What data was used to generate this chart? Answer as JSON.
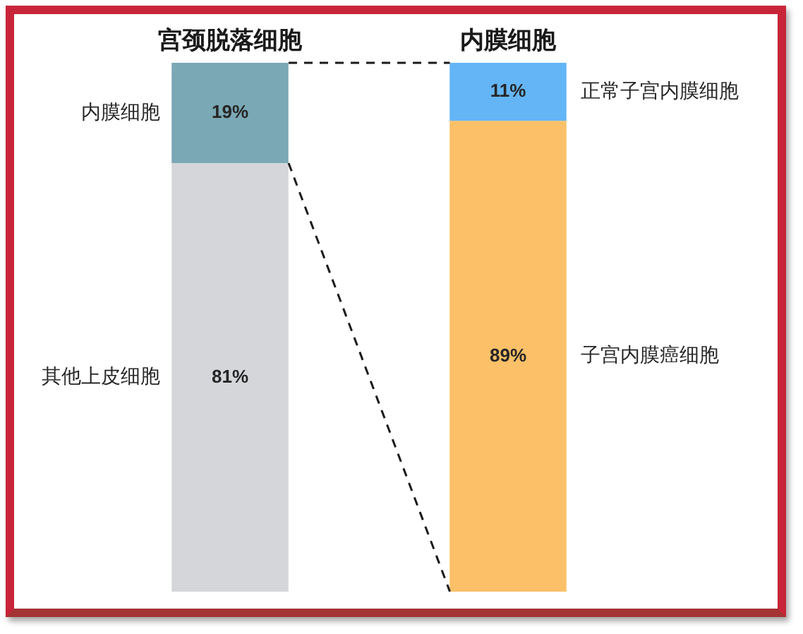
{
  "chart_data": {
    "type": "bar",
    "stacked": true,
    "categories": [
      "宫颈脱落细胞",
      "内膜细胞"
    ],
    "series": [
      {
        "name": "其他上皮细胞",
        "color": "#d4d6da",
        "values": [
          81,
          null
        ],
        "value_labels": [
          "81%",
          null
        ]
      },
      {
        "name": "内膜细胞",
        "color": "#7aa8b4",
        "values": [
          19,
          null
        ],
        "value_labels": [
          "19%",
          null
        ]
      },
      {
        "name": "子宫内膜癌细胞",
        "color": "#fbc068",
        "values": [
          null,
          89
        ],
        "value_labels": [
          null,
          "89%"
        ]
      },
      {
        "name": "正常子宫内膜细胞",
        "color": "#64b5f6",
        "values": [
          null,
          11
        ],
        "value_labels": [
          null,
          "11%"
        ]
      }
    ],
    "ylim": [
      0,
      100
    ],
    "tick_labels": "x",
    "grid": false,
    "legend": false
  }
}
